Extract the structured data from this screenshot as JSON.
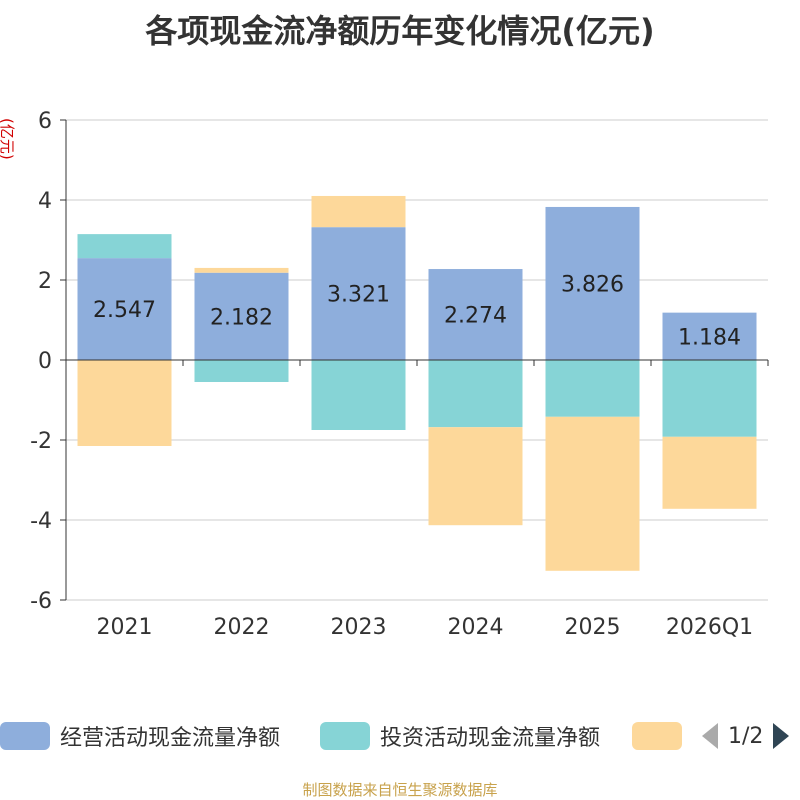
{
  "chart_data": {
    "type": "bar",
    "stacked": true,
    "title": "各项现金流净额历年变化情况(亿元)",
    "ylabel": "(亿元)",
    "xlabel": "",
    "ylim": [
      -6,
      6
    ],
    "yticks": [
      -6,
      -4,
      -2,
      0,
      2,
      4,
      6
    ],
    "categories": [
      "2021",
      "2022",
      "2023",
      "2024",
      "2025",
      "2026Q1"
    ],
    "series": [
      {
        "name": "经营活动现金流量净额",
        "color": "#8eaedc",
        "values": [
          2.547,
          2.182,
          3.321,
          2.274,
          3.826,
          1.184
        ],
        "labels": [
          "2.547",
          "2.182",
          "3.321",
          "2.274",
          "3.826",
          "1.184"
        ]
      },
      {
        "name": "投资活动现金流量净额",
        "color": "#86d4d6",
        "values": [
          0.6,
          -0.55,
          -1.75,
          -1.68,
          -1.42,
          -1.92
        ]
      },
      {
        "name": "",
        "color": "#fdd89a",
        "values": [
          -2.15,
          0.12,
          0.78,
          -2.45,
          -3.85,
          -1.8
        ]
      }
    ],
    "legend_position": "bottom"
  },
  "legend": {
    "items": [
      {
        "label": "经营活动现金流量净额",
        "color": "#8eaedc"
      },
      {
        "label": "投资活动现金流量净额",
        "color": "#86d4d6"
      },
      {
        "label": "",
        "color": "#fdd89a"
      }
    ],
    "page_indicator": "1/2"
  },
  "source_note": "制图数据来自恒生聚源数据库"
}
